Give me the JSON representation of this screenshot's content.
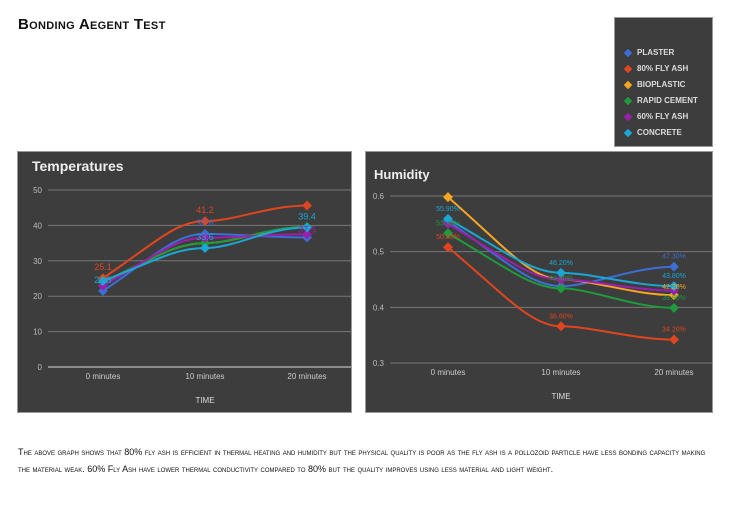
{
  "title": "Bonding Aegent Test",
  "legend": [
    {
      "name": "PLASTER",
      "color": "#3b6fd6"
    },
    {
      "name": "80% FLY ASH",
      "color": "#e0451f"
    },
    {
      "name": "BIOPLASTIC",
      "color": "#f5a623"
    },
    {
      "name": "RAPID CEMENT",
      "color": "#1e9b3a"
    },
    {
      "name": "60% FLY ASH",
      "color": "#9b1fae"
    },
    {
      "name": "CONCRETE",
      "color": "#1aa7d6"
    }
  ],
  "chart_data": [
    {
      "type": "line",
      "title": "Temperatures",
      "xlabel": "TIME",
      "ylabel": "",
      "categories": [
        "0 minutes",
        "10 minutes",
        "20 minutes"
      ],
      "ylim": [
        0,
        50
      ],
      "yticks": [
        "0",
        "10",
        "20",
        "30",
        "40",
        "50"
      ],
      "grid": true,
      "legend": "top-right",
      "series": [
        {
          "name": "PLASTER",
          "values": [
            21.5,
            37.6,
            36.6
          ],
          "labels": [
            "",
            "37.6",
            ""
          ]
        },
        {
          "name": "80% FLY ASH",
          "values": [
            25.1,
            41.2,
            45.6
          ],
          "labels": [
            "25.1",
            "41.2",
            ""
          ]
        },
        {
          "name": "BIOPLASTIC",
          "values": [
            24,
            35,
            39.5
          ],
          "labels": [
            "",
            "",
            ""
          ]
        },
        {
          "name": "RAPID CEMENT",
          "values": [
            24,
            35,
            39.6
          ],
          "labels": [
            "",
            "",
            ""
          ]
        },
        {
          "name": "60% FLY ASH",
          "values": [
            23,
            36.5,
            37.5
          ],
          "labels": [
            "",
            "",
            "37.5"
          ]
        },
        {
          "name": "CONCRETE",
          "values": [
            24.3,
            33.6,
            39.4
          ],
          "labels": [
            "24.3",
            "33.6",
            "39.4"
          ]
        }
      ]
    },
    {
      "type": "line",
      "title": "Humidity",
      "xlabel": "TIME",
      "ylabel": "",
      "categories": [
        "0 minutes",
        "10 minutes",
        "20 minutes"
      ],
      "ylim": [
        0.3,
        0.6
      ],
      "yticks": [
        "0.3",
        "0.4",
        "0.5",
        "0.6"
      ],
      "grid": true,
      "legend": "top-right",
      "series": [
        {
          "name": "PLASTER",
          "values": [
            0.555,
            0.438,
            0.473
          ],
          "labels": [
            "",
            "",
            "47.30%"
          ]
        },
        {
          "name": "80% FLY ASH",
          "values": [
            0.508,
            0.366,
            0.342
          ],
          "labels": [
            "50.80%",
            "36.60%",
            "34.20%"
          ]
        },
        {
          "name": "BIOPLASTIC",
          "values": [
            0.598,
            0.45,
            0.422
          ],
          "labels": [
            "",
            "",
            "42.20%"
          ]
        },
        {
          "name": "RAPID CEMENT",
          "values": [
            0.533,
            0.434,
            0.399
          ],
          "labels": [
            "53.30%",
            "43.40%",
            "39.90%"
          ]
        },
        {
          "name": "60% FLY ASH",
          "values": [
            0.55,
            0.45,
            0.43
          ],
          "labels": [
            "",
            "",
            ""
          ]
        },
        {
          "name": "CONCRETE",
          "values": [
            0.559,
            0.462,
            0.438
          ],
          "labels": [
            "55.90%",
            "46.20%",
            "43.80%"
          ]
        }
      ]
    }
  ],
  "paragraph": "The above graph shows that 80% fly ash is efficient in thermal heating and humidity but the physical quality is poor as the fly ash is a pollozoid particle have less bonding capacity making the material weak. 60% Fly Ash have lower thermal conductivity compared to 80% but the quality improves using less material and light weight."
}
